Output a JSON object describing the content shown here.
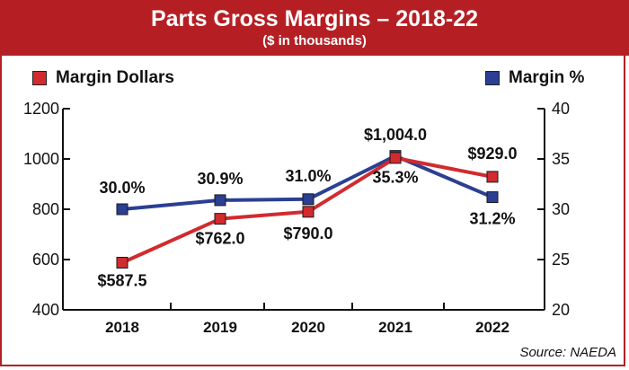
{
  "header": {
    "title": "Parts Gross Margins – 2018-22",
    "subtitle": "($ in thousands)"
  },
  "legend": {
    "dollars_label": "Margin Dollars",
    "percent_label": "Margin %"
  },
  "source": "Source: NAEDA",
  "colors": {
    "brand_red": "#b51f24",
    "dollars_series": "#d12b2f",
    "percent_series": "#2b3f93"
  },
  "chart_data": {
    "type": "line",
    "title": "Parts Gross Margins – 2018-22",
    "subtitle": "($ in thousands)",
    "categories": [
      "2018",
      "2019",
      "2020",
      "2021",
      "2022"
    ],
    "left_axis": {
      "ylim": [
        400,
        1200
      ],
      "ticks": [
        "400",
        "600",
        "800",
        "1000",
        "1200"
      ]
    },
    "right_axis": {
      "ylim": [
        20,
        40
      ],
      "ticks": [
        "20",
        "25",
        "30",
        "35",
        "40"
      ]
    },
    "series": [
      {
        "name": "Margin Dollars",
        "axis": "left",
        "values": [
          587.5,
          762.0,
          790.0,
          1004.0,
          929.0
        ],
        "labels": [
          "$587.5",
          "$762.0",
          "$790.0",
          "$1,004.0",
          "$929.0"
        ]
      },
      {
        "name": "Margin %",
        "axis": "right",
        "values": [
          30.0,
          30.9,
          31.0,
          35.3,
          31.2
        ],
        "labels": [
          "30.0%",
          "30.9%",
          "31.0%",
          "35.3%",
          "31.2%"
        ]
      }
    ],
    "legend_position": "top",
    "grid": false
  }
}
